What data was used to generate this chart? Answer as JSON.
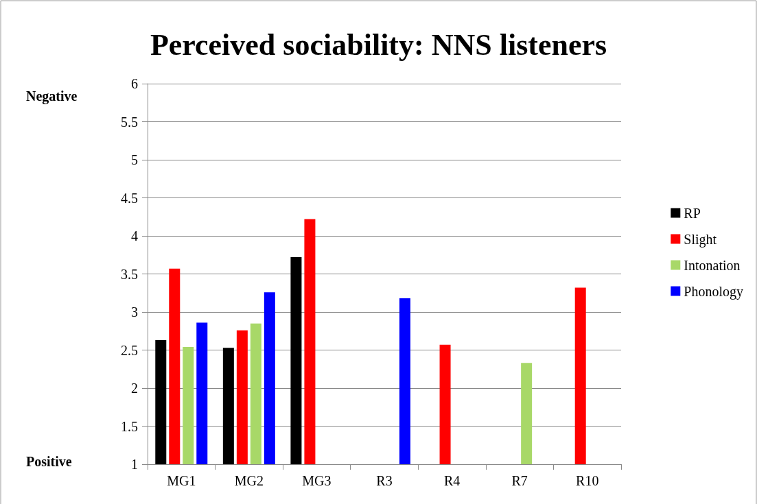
{
  "chart_data": {
    "type": "bar",
    "title": "Perceived sociability: NNS listeners",
    "categories": [
      "MG1",
      "MG2",
      "MG3",
      "R3",
      "R4",
      "R7",
      "R10"
    ],
    "series": [
      {
        "name": "RP",
        "color": "#000000",
        "values": [
          2.63,
          2.53,
          3.72,
          null,
          null,
          null,
          null
        ]
      },
      {
        "name": "Slight",
        "color": "#ff0000",
        "values": [
          3.57,
          2.76,
          4.22,
          null,
          2.57,
          null,
          3.32
        ]
      },
      {
        "name": "Intonation",
        "color": "#a8d868",
        "values": [
          2.54,
          2.85,
          null,
          null,
          null,
          2.33,
          null
        ]
      },
      {
        "name": "Phonology",
        "color": "#0000ff",
        "values": [
          2.86,
          3.26,
          null,
          3.18,
          null,
          null,
          null
        ]
      }
    ],
    "ylim": [
      1,
      6
    ],
    "yticks": [
      1,
      1.5,
      2,
      2.5,
      3,
      3.5,
      4,
      4.5,
      5,
      5.5,
      6
    ],
    "annotations": [
      "Negative",
      "Positive"
    ],
    "grid": "y",
    "legend": "right"
  }
}
